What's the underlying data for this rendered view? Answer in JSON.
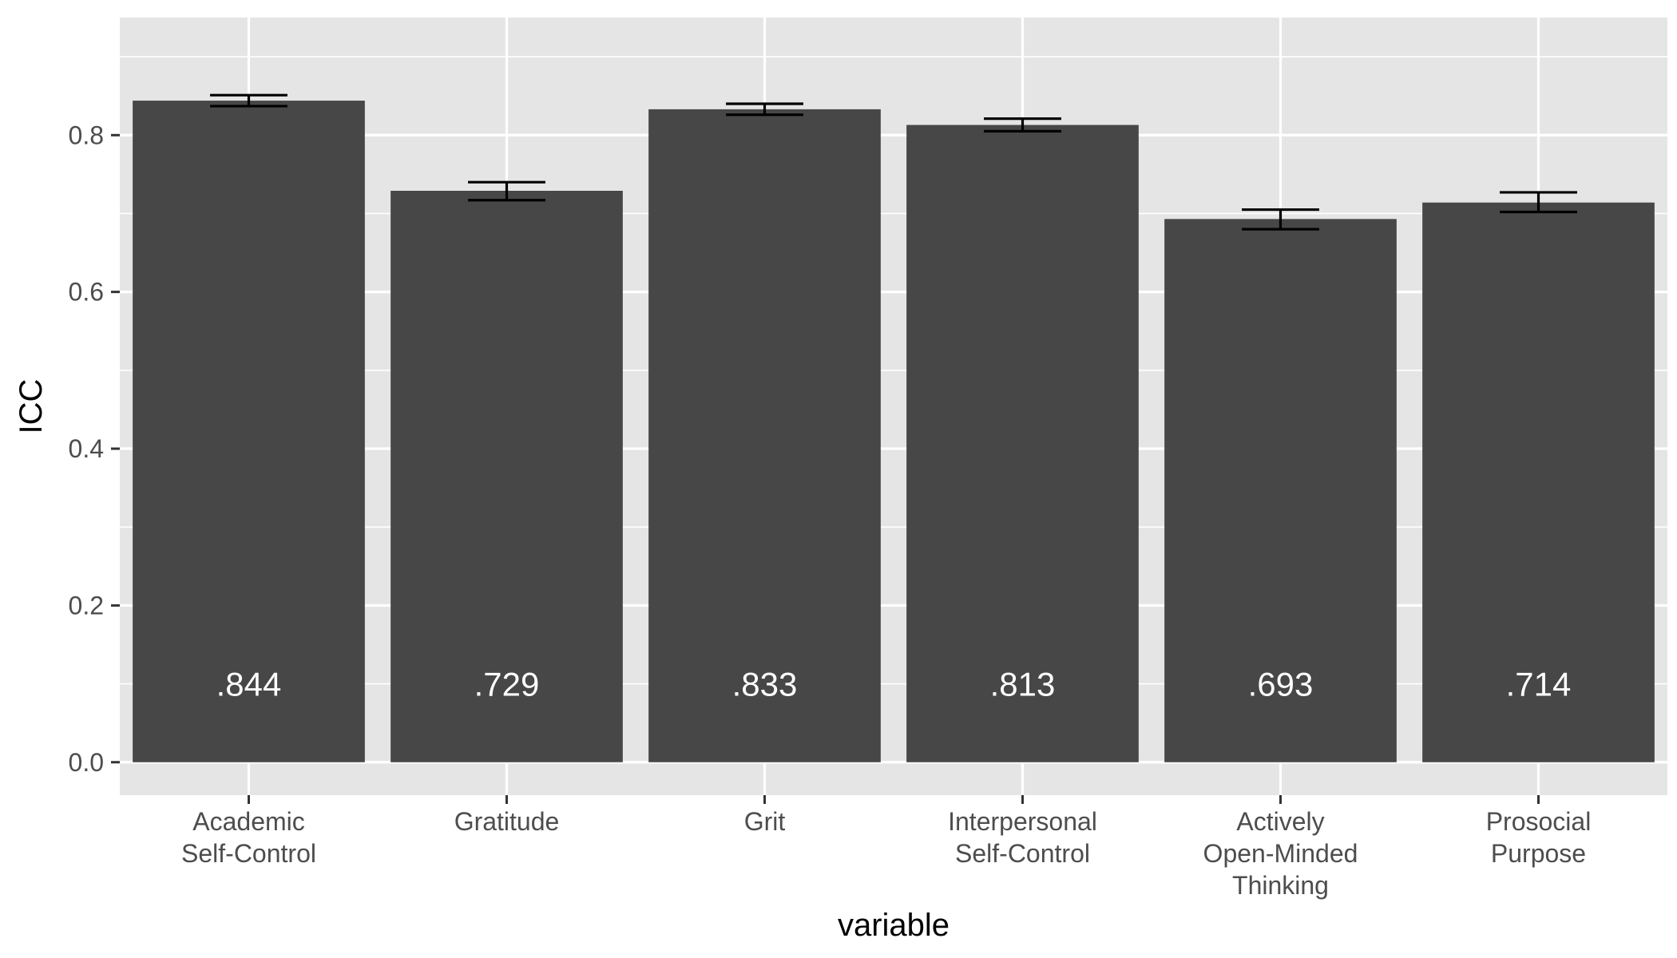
{
  "chart_data": {
    "type": "bar",
    "title": "",
    "xlabel": "variable",
    "ylabel": "ICC",
    "ylim": [
      -0.042,
      0.95
    ],
    "yticks": [
      0.0,
      0.2,
      0.4,
      0.6,
      0.8
    ],
    "ytick_labels": [
      "0.0",
      "0.2",
      "0.4",
      "0.6",
      "0.8"
    ],
    "grid": true,
    "categories": [
      [
        "Academic",
        "Self-Control"
      ],
      [
        "Gratitude"
      ],
      [
        "Grit"
      ],
      [
        "Interpersonal",
        "Self-Control"
      ],
      [
        "Actively",
        "Open-Minded",
        "Thinking"
      ],
      [
        "Prosocial",
        "Purpose"
      ]
    ],
    "values": [
      0.844,
      0.729,
      0.833,
      0.813,
      0.693,
      0.714
    ],
    "value_labels": [
      ".844",
      ".729",
      ".833",
      ".813",
      ".693",
      ".714"
    ],
    "error_low": [
      0.837,
      0.717,
      0.826,
      0.805,
      0.68,
      0.702
    ],
    "error_high": [
      0.851,
      0.74,
      0.84,
      0.821,
      0.705,
      0.727
    ],
    "colors": {
      "bar": "#474747",
      "panel": "#e5e5e5",
      "grid": "#ffffff",
      "errorbar": "#000000",
      "tick": "#333333"
    }
  }
}
